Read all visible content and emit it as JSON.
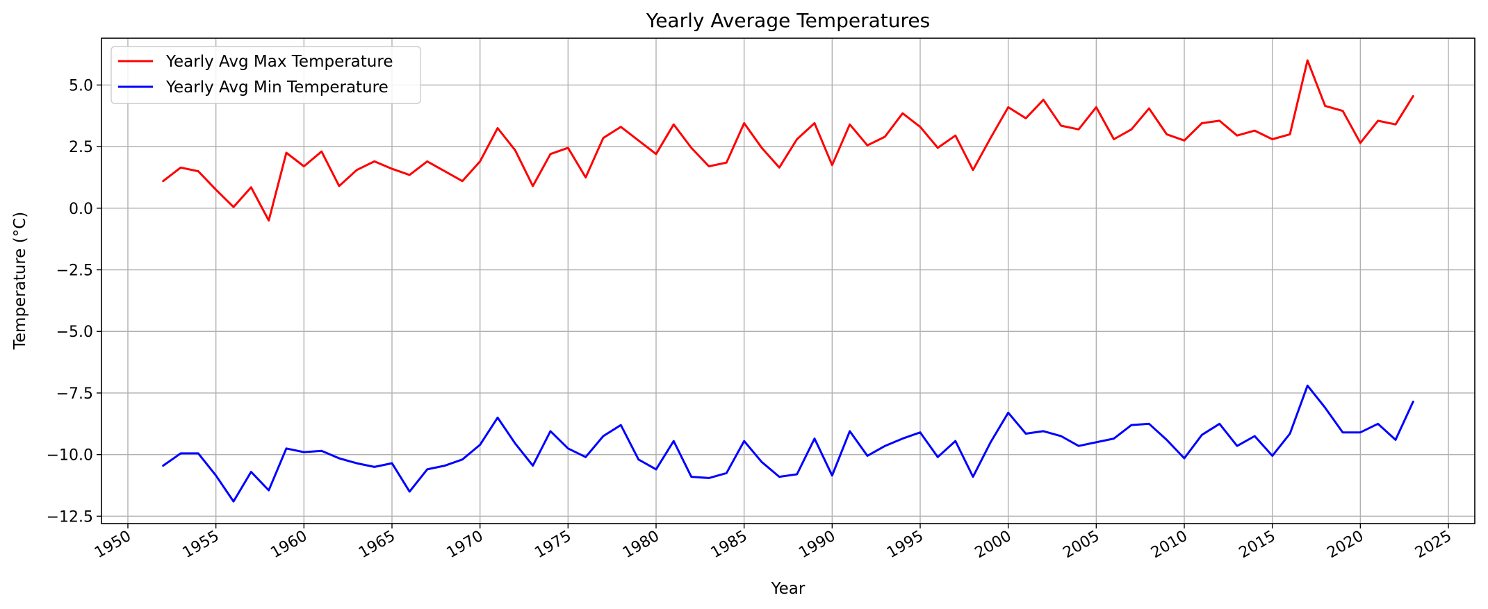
{
  "chart_data": {
    "type": "line",
    "title": "Yearly Average Temperatures",
    "xlabel": "Year",
    "ylabel": "Temperature (°C)",
    "xlim": [
      1948.5,
      2026.5
    ],
    "ylim": [
      -12.8,
      6.9
    ],
    "xticks": [
      1950,
      1955,
      1960,
      1965,
      1970,
      1975,
      1980,
      1985,
      1990,
      1995,
      2000,
      2005,
      2010,
      2015,
      2020,
      2025
    ],
    "yticks": [
      5.0,
      2.5,
      0.0,
      -2.5,
      -5.0,
      -7.5,
      -10.0,
      -12.5
    ],
    "ytick_labels": [
      "5.0",
      "2.5",
      "0.0",
      "−2.5",
      "−5.0",
      "−7.5",
      "−10.0",
      "−12.5"
    ],
    "grid": true,
    "legend_position": "top-left",
    "x": [
      1952,
      1953,
      1954,
      1955,
      1956,
      1957,
      1958,
      1959,
      1960,
      1961,
      1962,
      1963,
      1964,
      1965,
      1966,
      1967,
      1968,
      1969,
      1970,
      1971,
      1972,
      1973,
      1974,
      1975,
      1976,
      1977,
      1978,
      1979,
      1980,
      1981,
      1982,
      1983,
      1984,
      1985,
      1986,
      1987,
      1988,
      1989,
      1990,
      1991,
      1992,
      1993,
      1994,
      1995,
      1996,
      1997,
      1998,
      1999,
      2000,
      2001,
      2002,
      2003,
      2004,
      2005,
      2006,
      2007,
      2008,
      2009,
      2010,
      2011,
      2012,
      2013,
      2014,
      2015,
      2016,
      2017,
      2018,
      2019,
      2020,
      2021,
      2022,
      2023
    ],
    "series": [
      {
        "name": "Yearly Avg Max Temperature",
        "color": "#ff0000",
        "values": [
          1.1,
          1.65,
          1.5,
          0.75,
          0.05,
          0.85,
          -0.5,
          2.25,
          1.7,
          2.3,
          0.9,
          1.55,
          1.9,
          1.6,
          1.35,
          1.9,
          1.5,
          1.1,
          1.9,
          3.25,
          2.35,
          0.9,
          2.2,
          2.45,
          1.25,
          2.85,
          3.3,
          2.75,
          2.2,
          3.4,
          2.45,
          1.7,
          1.85,
          3.45,
          2.45,
          1.65,
          2.8,
          3.45,
          1.75,
          3.4,
          2.55,
          2.9,
          3.85,
          3.3,
          2.45,
          2.95,
          1.55,
          2.85,
          4.1,
          3.65,
          4.4,
          3.35,
          3.2,
          4.1,
          2.8,
          3.2,
          4.05,
          3.0,
          2.75,
          3.45,
          3.55,
          2.95,
          3.15,
          2.8,
          3.0,
          6.0,
          4.15,
          3.95,
          2.65,
          3.55,
          3.4,
          4.55
        ]
      },
      {
        "name": "Yearly Avg Min Temperature",
        "color": "#0000ff",
        "values": [
          -10.45,
          -9.95,
          -9.95,
          -10.85,
          -11.9,
          -10.7,
          -11.45,
          -9.75,
          -9.9,
          -9.85,
          -10.15,
          -10.35,
          -10.5,
          -10.35,
          -11.5,
          -10.6,
          -10.45,
          -10.2,
          -9.6,
          -8.5,
          -9.55,
          -10.45,
          -9.05,
          -9.75,
          -10.1,
          -9.25,
          -8.8,
          -10.2,
          -10.6,
          -9.45,
          -10.9,
          -10.95,
          -10.75,
          -9.45,
          -10.3,
          -10.9,
          -10.8,
          -9.35,
          -10.85,
          -9.05,
          -10.05,
          -9.65,
          -9.35,
          -9.1,
          -10.1,
          -9.45,
          -10.9,
          -9.5,
          -8.3,
          -9.15,
          -9.05,
          -9.25,
          -9.65,
          -9.5,
          -9.35,
          -8.8,
          -8.75,
          -9.4,
          -10.15,
          -9.2,
          -8.75,
          -9.65,
          -9.25,
          -10.05,
          -9.15,
          -7.2,
          -8.1,
          -9.1,
          -9.1,
          -8.75,
          -9.4,
          -7.85
        ]
      }
    ]
  }
}
